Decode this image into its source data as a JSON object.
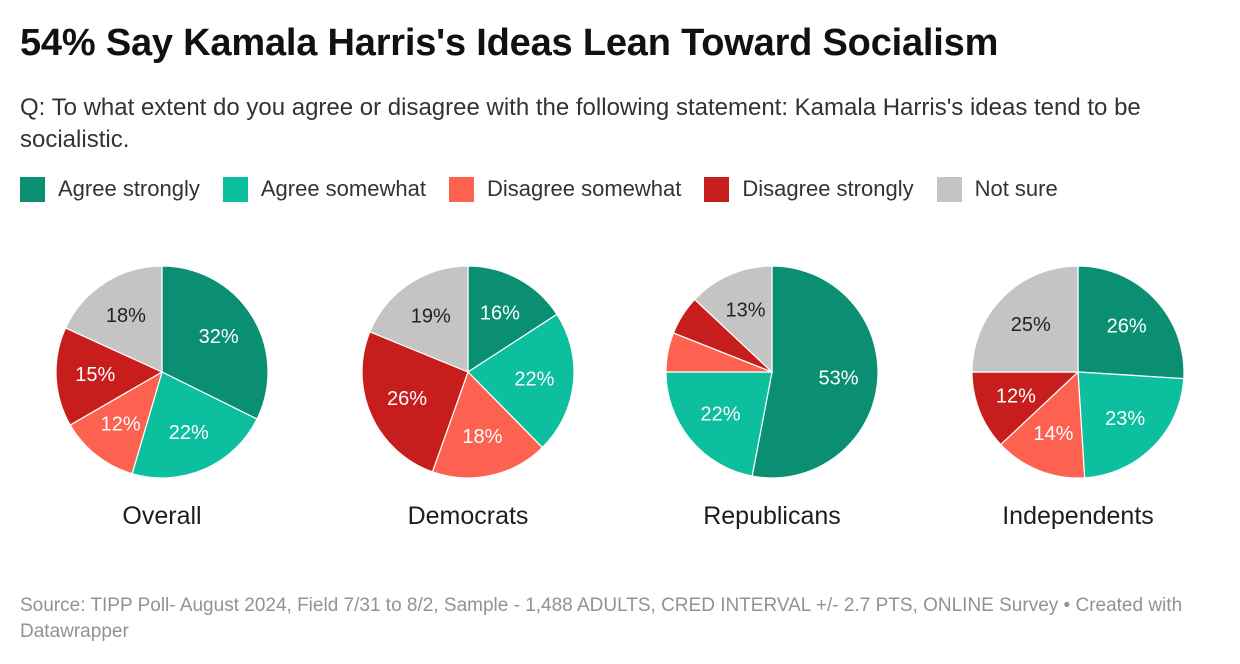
{
  "header": {
    "title": "54% Say Kamala Harris's Ideas Lean Toward Socialism",
    "subtitle": "Q: To what extent do you agree or disagree with the following statement: Kamala Harris's ideas tend to be socialistic."
  },
  "legend": [
    {
      "label": "Agree strongly",
      "color": "#0a8f72"
    },
    {
      "label": "Agree somewhat",
      "color": "#0bbf9f"
    },
    {
      "label": "Disagree somewhat",
      "color": "#fd6150"
    },
    {
      "label": "Disagree strongly",
      "color": "#c71e1d"
    },
    {
      "label": "Not sure",
      "color": "#c4c4c4"
    }
  ],
  "chart_data": {
    "type": "pie",
    "categories": [
      "Agree strongly",
      "Agree somewhat",
      "Disagree somewhat",
      "Disagree strongly",
      "Not sure"
    ],
    "colors": [
      "#0a8f72",
      "#0bbf9f",
      "#fd6150",
      "#c71e1d",
      "#c4c4c4"
    ],
    "series": [
      {
        "name": "Overall",
        "values": [
          32,
          22,
          12,
          15,
          18
        ],
        "labels": [
          "32%",
          "22%",
          "12%",
          "15%",
          "18%"
        ]
      },
      {
        "name": "Democrats",
        "values": [
          16,
          22,
          18,
          26,
          19
        ],
        "labels": [
          "16%",
          "22%",
          "18%",
          "26%",
          "19%"
        ]
      },
      {
        "name": "Republicans",
        "values": [
          53,
          22,
          6,
          6,
          13
        ],
        "labels": [
          "53%",
          "22%",
          "",
          "",
          "13%"
        ]
      },
      {
        "name": "Independents",
        "values": [
          26,
          23,
          14,
          12,
          25
        ],
        "labels": [
          "26%",
          "23%",
          "14%",
          "12%",
          "25%"
        ]
      }
    ]
  },
  "footer": {
    "source": "Source: TIPP Poll- August 2024, Field 7/31 to 8/2, Sample - 1,488 ADULTS, CRED INTERVAL +/- 2.7 PTS, ONLINE Survey • Created with Datawrapper"
  }
}
